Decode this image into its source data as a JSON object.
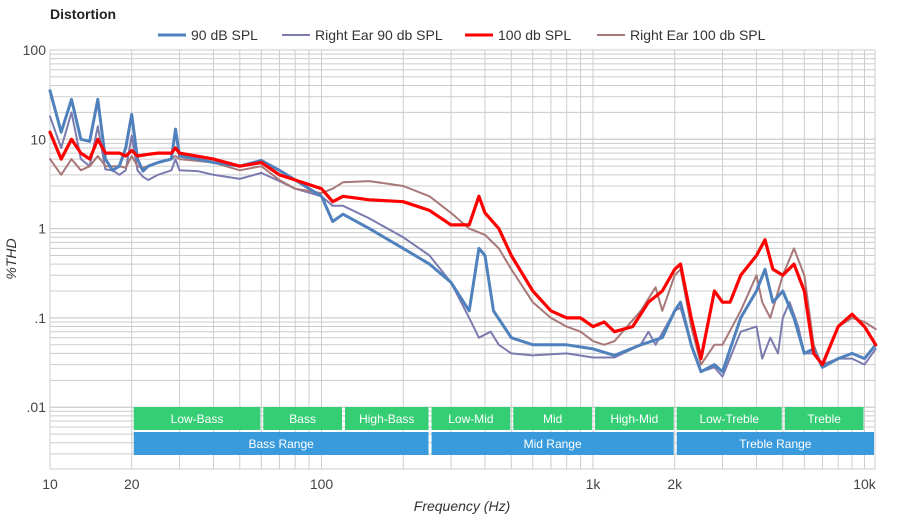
{
  "chart_data": {
    "type": "line",
    "title": "Distortion",
    "xlabel": "Frequency (Hz)",
    "ylabel": "%THD",
    "x_scale": "log",
    "y_scale": "log",
    "xlim": [
      10,
      11000
    ],
    "ylim": [
      0.002,
      100
    ],
    "grid": true,
    "legend_position": "top-center",
    "x_ticks": [
      {
        "value": 10,
        "label": "10"
      },
      {
        "value": 20,
        "label": "20"
      },
      {
        "value": 100,
        "label": "100"
      },
      {
        "value": 1000,
        "label": "1k"
      },
      {
        "value": 2000,
        "label": "2k"
      },
      {
        "value": 10000,
        "label": "10k"
      }
    ],
    "y_ticks": [
      {
        "value": 100,
        "label": "100"
      },
      {
        "value": 10,
        "label": "10"
      },
      {
        "value": 1,
        "label": "1"
      },
      {
        "value": 0.1,
        "label": ".1"
      },
      {
        "value": 0.01,
        "label": ".01"
      }
    ],
    "series": [
      {
        "name": "90 dB SPL",
        "color": "#4f81bd",
        "points": [
          [
            10,
            35
          ],
          [
            11,
            12
          ],
          [
            12,
            28
          ],
          [
            13,
            10
          ],
          [
            14,
            9.5
          ],
          [
            15,
            28
          ],
          [
            16,
            6
          ],
          [
            17,
            4.5
          ],
          [
            18,
            5
          ],
          [
            19,
            8
          ],
          [
            20,
            19
          ],
          [
            21,
            6
          ],
          [
            22,
            4.4
          ],
          [
            23,
            5
          ],
          [
            25,
            5.5
          ],
          [
            28,
            6
          ],
          [
            29,
            13
          ],
          [
            30,
            6.5
          ],
          [
            35,
            6
          ],
          [
            40,
            5.5
          ],
          [
            50,
            5
          ],
          [
            60,
            5.8
          ],
          [
            70,
            4.5
          ],
          [
            80,
            3.5
          ],
          [
            100,
            2.3
          ],
          [
            110,
            1.2
          ],
          [
            120,
            1.45
          ],
          [
            150,
            1.0
          ],
          [
            200,
            0.6
          ],
          [
            250,
            0.4
          ],
          [
            300,
            0.25
          ],
          [
            350,
            0.12
          ],
          [
            380,
            0.6
          ],
          [
            400,
            0.5
          ],
          [
            430,
            0.12
          ],
          [
            500,
            0.06
          ],
          [
            600,
            0.05
          ],
          [
            800,
            0.05
          ],
          [
            1000,
            0.045
          ],
          [
            1200,
            0.038
          ],
          [
            1500,
            0.05
          ],
          [
            1800,
            0.06
          ],
          [
            2000,
            0.12
          ],
          [
            2100,
            0.15
          ],
          [
            2300,
            0.05
          ],
          [
            2500,
            0.025
          ],
          [
            2800,
            0.03
          ],
          [
            3000,
            0.025
          ],
          [
            3500,
            0.1
          ],
          [
            4000,
            0.2
          ],
          [
            4300,
            0.35
          ],
          [
            4600,
            0.15
          ],
          [
            5000,
            0.2
          ],
          [
            5500,
            0.1
          ],
          [
            6000,
            0.04
          ],
          [
            6500,
            0.045
          ],
          [
            7000,
            0.028
          ],
          [
            8000,
            0.035
          ],
          [
            9000,
            0.04
          ],
          [
            10000,
            0.035
          ],
          [
            11000,
            0.05
          ]
        ]
      },
      {
        "name": "Right Ear 90 db SPL",
        "color": "#7b7bb0",
        "points": [
          [
            10,
            18
          ],
          [
            11,
            8
          ],
          [
            12,
            20
          ],
          [
            13,
            6
          ],
          [
            14,
            5
          ],
          [
            15,
            14
          ],
          [
            16,
            4.6
          ],
          [
            17,
            4.5
          ],
          [
            18,
            4
          ],
          [
            19,
            4.5
          ],
          [
            20,
            11
          ],
          [
            21,
            4.5
          ],
          [
            22,
            3.8
          ],
          [
            23,
            3.5
          ],
          [
            25,
            4
          ],
          [
            28,
            4.5
          ],
          [
            29,
            6
          ],
          [
            30,
            4.5
          ],
          [
            35,
            4.4
          ],
          [
            40,
            4
          ],
          [
            50,
            3.6
          ],
          [
            60,
            4.2
          ],
          [
            70,
            3.4
          ],
          [
            80,
            2.8
          ],
          [
            100,
            2.3
          ],
          [
            110,
            1.8
          ],
          [
            120,
            1.8
          ],
          [
            150,
            1.3
          ],
          [
            200,
            0.8
          ],
          [
            250,
            0.5
          ],
          [
            300,
            0.25
          ],
          [
            350,
            0.1
          ],
          [
            380,
            0.06
          ],
          [
            420,
            0.07
          ],
          [
            450,
            0.05
          ],
          [
            500,
            0.04
          ],
          [
            600,
            0.038
          ],
          [
            800,
            0.04
          ],
          [
            1000,
            0.036
          ],
          [
            1200,
            0.036
          ],
          [
            1500,
            0.05
          ],
          [
            1600,
            0.07
          ],
          [
            1700,
            0.05
          ],
          [
            2000,
            0.12
          ],
          [
            2100,
            0.13
          ],
          [
            2300,
            0.05
          ],
          [
            2500,
            0.025
          ],
          [
            2800,
            0.028
          ],
          [
            3000,
            0.022
          ],
          [
            3500,
            0.07
          ],
          [
            4000,
            0.08
          ],
          [
            4200,
            0.035
          ],
          [
            4500,
            0.06
          ],
          [
            4800,
            0.04
          ],
          [
            5000,
            0.1
          ],
          [
            5300,
            0.15
          ],
          [
            5700,
            0.08
          ],
          [
            6000,
            0.04
          ],
          [
            6500,
            0.04
          ],
          [
            7000,
            0.03
          ],
          [
            8000,
            0.035
          ],
          [
            9000,
            0.035
          ],
          [
            10000,
            0.03
          ],
          [
            11000,
            0.045
          ]
        ]
      },
      {
        "name": "100 db SPL",
        "color": "#ff0000",
        "points": [
          [
            10,
            12
          ],
          [
            11,
            6
          ],
          [
            12,
            10
          ],
          [
            13,
            7
          ],
          [
            14,
            6
          ],
          [
            15,
            10
          ],
          [
            16,
            7
          ],
          [
            18,
            7
          ],
          [
            19,
            6.5
          ],
          [
            20,
            7.5
          ],
          [
            21,
            6.5
          ],
          [
            23,
            6.8
          ],
          [
            25,
            7
          ],
          [
            28,
            7
          ],
          [
            29,
            8
          ],
          [
            30,
            7
          ],
          [
            40,
            6
          ],
          [
            50,
            5
          ],
          [
            60,
            5.5
          ],
          [
            70,
            4
          ],
          [
            80,
            3.5
          ],
          [
            100,
            2.8
          ],
          [
            110,
            2
          ],
          [
            120,
            2.3
          ],
          [
            150,
            2.1
          ],
          [
            200,
            2.0
          ],
          [
            250,
            1.6
          ],
          [
            300,
            1.1
          ],
          [
            350,
            1.1
          ],
          [
            380,
            2.3
          ],
          [
            400,
            1.5
          ],
          [
            450,
            1.0
          ],
          [
            500,
            0.5
          ],
          [
            600,
            0.2
          ],
          [
            700,
            0.12
          ],
          [
            800,
            0.1
          ],
          [
            900,
            0.1
          ],
          [
            1000,
            0.08
          ],
          [
            1100,
            0.09
          ],
          [
            1200,
            0.07
          ],
          [
            1400,
            0.08
          ],
          [
            1600,
            0.15
          ],
          [
            1800,
            0.2
          ],
          [
            2000,
            0.35
          ],
          [
            2100,
            0.4
          ],
          [
            2300,
            0.1
          ],
          [
            2500,
            0.035
          ],
          [
            2800,
            0.2
          ],
          [
            3000,
            0.15
          ],
          [
            3200,
            0.15
          ],
          [
            3500,
            0.3
          ],
          [
            4000,
            0.5
          ],
          [
            4300,
            0.75
          ],
          [
            4600,
            0.35
          ],
          [
            5000,
            0.3
          ],
          [
            5500,
            0.4
          ],
          [
            6000,
            0.2
          ],
          [
            6500,
            0.04
          ],
          [
            7000,
            0.03
          ],
          [
            8000,
            0.08
          ],
          [
            9000,
            0.11
          ],
          [
            10000,
            0.08
          ],
          [
            11000,
            0.05
          ]
        ]
      },
      {
        "name": "Right Ear 100 db SPL",
        "color": "#a87878",
        "points": [
          [
            10,
            6
          ],
          [
            11,
            4
          ],
          [
            12,
            6
          ],
          [
            13,
            4.5
          ],
          [
            14,
            5
          ],
          [
            15,
            6.5
          ],
          [
            16,
            5
          ],
          [
            18,
            5
          ],
          [
            19,
            4.8
          ],
          [
            20,
            6.5
          ],
          [
            21,
            5
          ],
          [
            22,
            4.8
          ],
          [
            25,
            5.5
          ],
          [
            28,
            6
          ],
          [
            29,
            6.5
          ],
          [
            30,
            6
          ],
          [
            40,
            5.5
          ],
          [
            50,
            4.5
          ],
          [
            60,
            5
          ],
          [
            70,
            3.5
          ],
          [
            80,
            2.8
          ],
          [
            100,
            2.5
          ],
          [
            110,
            2.8
          ],
          [
            120,
            3.3
          ],
          [
            150,
            3.4
          ],
          [
            200,
            3.0
          ],
          [
            250,
            2.3
          ],
          [
            300,
            1.5
          ],
          [
            350,
            1.0
          ],
          [
            400,
            0.85
          ],
          [
            450,
            0.6
          ],
          [
            500,
            0.35
          ],
          [
            600,
            0.15
          ],
          [
            700,
            0.1
          ],
          [
            800,
            0.08
          ],
          [
            900,
            0.07
          ],
          [
            1000,
            0.055
          ],
          [
            1100,
            0.05
          ],
          [
            1200,
            0.055
          ],
          [
            1500,
            0.12
          ],
          [
            1700,
            0.22
          ],
          [
            1800,
            0.12
          ],
          [
            2000,
            0.3
          ],
          [
            2100,
            0.35
          ],
          [
            2300,
            0.08
          ],
          [
            2500,
            0.03
          ],
          [
            2800,
            0.05
          ],
          [
            3000,
            0.05
          ],
          [
            3500,
            0.12
          ],
          [
            4000,
            0.3
          ],
          [
            4200,
            0.15
          ],
          [
            4500,
            0.1
          ],
          [
            5000,
            0.3
          ],
          [
            5500,
            0.6
          ],
          [
            6000,
            0.3
          ],
          [
            6500,
            0.05
          ],
          [
            7000,
            0.028
          ],
          [
            8000,
            0.08
          ],
          [
            9000,
            0.1
          ],
          [
            10000,
            0.09
          ],
          [
            11000,
            0.075
          ]
        ]
      }
    ],
    "bands": [
      {
        "label": "Low-Bass",
        "from": 20,
        "to": 60,
        "row": 1
      },
      {
        "label": "Bass",
        "from": 60,
        "to": 120,
        "row": 1
      },
      {
        "label": "High-Bass",
        "from": 120,
        "to": 250,
        "row": 1
      },
      {
        "label": "Low-Mid",
        "from": 250,
        "to": 500,
        "row": 1
      },
      {
        "label": "Mid",
        "from": 500,
        "to": 1000,
        "row": 1
      },
      {
        "label": "High-Mid",
        "from": 1000,
        "to": 2000,
        "row": 1
      },
      {
        "label": "Low-Treble",
        "from": 2000,
        "to": 5000,
        "row": 1
      },
      {
        "label": "Treble",
        "from": 5000,
        "to": 10000,
        "row": 1
      },
      {
        "label": "Bass Range",
        "from": 20,
        "to": 250,
        "row": 2
      },
      {
        "label": "Mid Range",
        "from": 250,
        "to": 2000,
        "row": 2
      },
      {
        "label": "Treble Range",
        "from": 2000,
        "to": 11000,
        "row": 2
      }
    ],
    "band_colors": {
      "row1": "#2ecc71",
      "row2": "#3498db"
    }
  }
}
